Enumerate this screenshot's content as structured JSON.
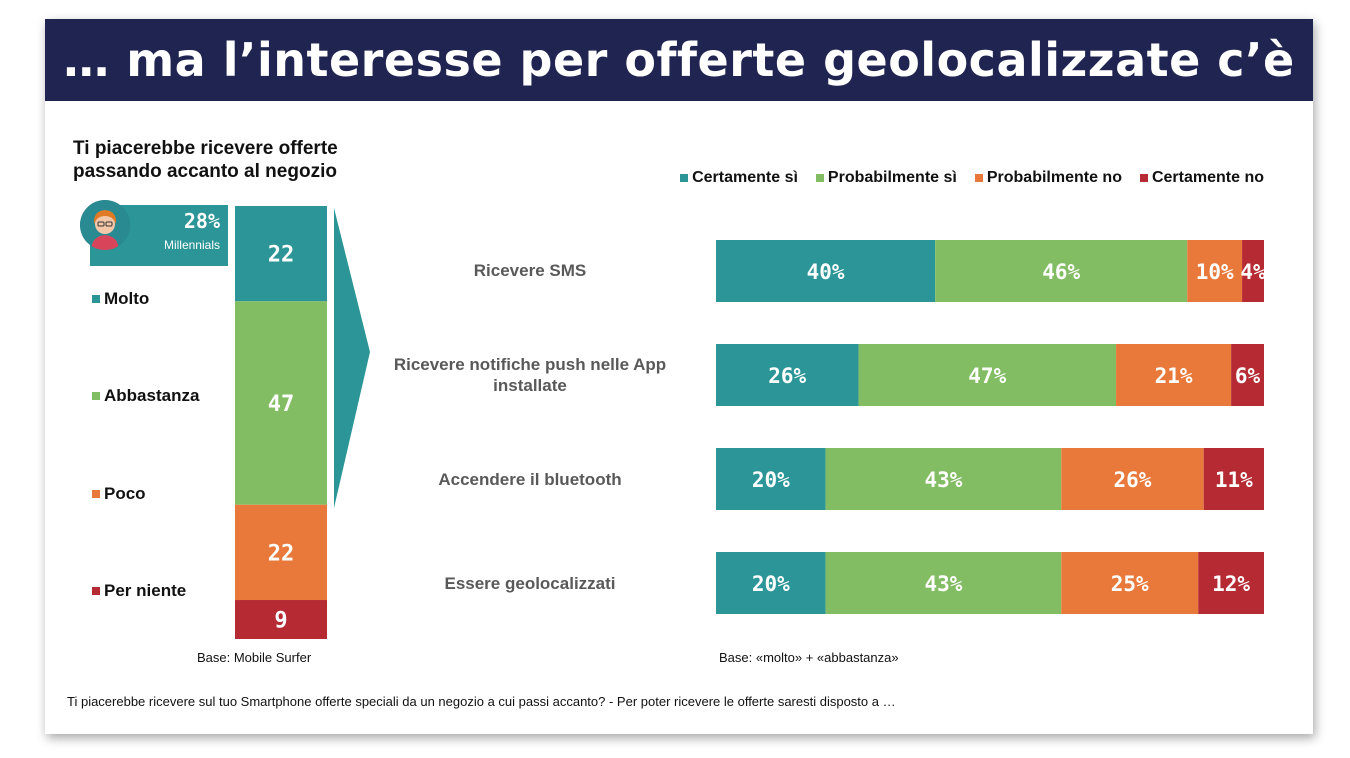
{
  "title": "… ma l’interesse per offerte geolocalizzate c’è",
  "left_chart_title": "Ti piacerebbe ricevere offerte passando accanto al negozio",
  "millennials": {
    "value": "28%",
    "label": "Millennials"
  },
  "left_base": "Base: Mobile Surfer",
  "right_base": "Base: «molto» + «abbastanza»",
  "footnote": "Ti piacerebbe ricevere sul tuo Smartphone offerte speciali da un negozio a cui passi accanto? - Per poter ricevere le offerte saresti disposto a …",
  "colors": {
    "teal": "#2b9597",
    "green": "#82bd63",
    "orange": "#e9793a",
    "red": "#b52a33",
    "navy": "#1f2451"
  },
  "chart_data": [
    {
      "type": "bar",
      "stacked": true,
      "orientation": "vertical",
      "title": "Ti piacerebbe ricevere offerte passando accanto al negozio",
      "categories": [
        "Molto",
        "Abbastanza",
        "Poco",
        "Per niente"
      ],
      "values": [
        22,
        47,
        22,
        9
      ],
      "labels": [
        "22",
        "47",
        "22",
        "9"
      ],
      "colors": [
        "#2b9597",
        "#82bd63",
        "#e9793a",
        "#b52a33"
      ],
      "legend_position": "left"
    },
    {
      "type": "bar",
      "stacked": true,
      "orientation": "horizontal",
      "categories": [
        "Ricevere SMS",
        "Ricevere notifiche push nelle App installate",
        "Accendere il bluetooth",
        "Essere geolocalizzati"
      ],
      "series": [
        {
          "name": "Certamente sì",
          "color": "#2b9597",
          "values": [
            40,
            26,
            20,
            20
          ]
        },
        {
          "name": "Probabilmente sì",
          "color": "#82bd63",
          "values": [
            46,
            47,
            43,
            43
          ]
        },
        {
          "name": "Probabilmente no",
          "color": "#e9793a",
          "values": [
            10,
            21,
            26,
            25
          ]
        },
        {
          "name": "Certamente no",
          "color": "#b52a33",
          "values": [
            4,
            6,
            11,
            12
          ]
        }
      ],
      "unit": "%",
      "legend_position": "top"
    }
  ]
}
